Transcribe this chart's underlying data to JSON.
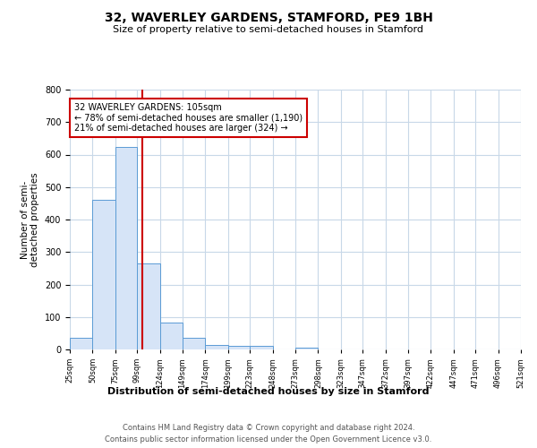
{
  "title": "32, WAVERLEY GARDENS, STAMFORD, PE9 1BH",
  "subtitle": "Size of property relative to semi-detached houses in Stamford",
  "xlabel": "Distribution of semi-detached houses by size in Stamford",
  "ylabel": "Number of semi-\ndetached properties",
  "footnote1": "Contains HM Land Registry data © Crown copyright and database right 2024.",
  "footnote2": "Contains public sector information licensed under the Open Government Licence v3.0.",
  "annotation_title": "32 WAVERLEY GARDENS: 105sqm",
  "annotation_line1": "← 78% of semi-detached houses are smaller (1,190)",
  "annotation_line2": "21% of semi-detached houses are larger (324) →",
  "property_size": 105,
  "bar_edges": [
    25,
    50,
    75,
    99,
    124,
    149,
    174,
    199,
    223,
    248,
    273,
    298,
    323,
    347,
    372,
    397,
    422,
    447,
    471,
    496,
    521
  ],
  "bar_heights": [
    35,
    462,
    624,
    265,
    82,
    36,
    15,
    10,
    10,
    0,
    6,
    0,
    0,
    0,
    0,
    0,
    0,
    0,
    0,
    0
  ],
  "bar_color": "#d6e4f7",
  "bar_edge_color": "#5b9bd5",
  "vline_x": 105,
  "vline_color": "#cc0000",
  "annotation_box_color": "#cc0000",
  "ylim": [
    0,
    800
  ],
  "yticks": [
    0,
    100,
    200,
    300,
    400,
    500,
    600,
    700,
    800
  ],
  "xtick_labels": [
    "25sqm",
    "50sqm",
    "75sqm",
    "99sqm",
    "124sqm",
    "149sqm",
    "174sqm",
    "199sqm",
    "223sqm",
    "248sqm",
    "273sqm",
    "298sqm",
    "323sqm",
    "347sqm",
    "372sqm",
    "397sqm",
    "422sqm",
    "447sqm",
    "471sqm",
    "496sqm",
    "521sqm"
  ],
  "background_color": "#ffffff",
  "grid_color": "#c8d8e8"
}
